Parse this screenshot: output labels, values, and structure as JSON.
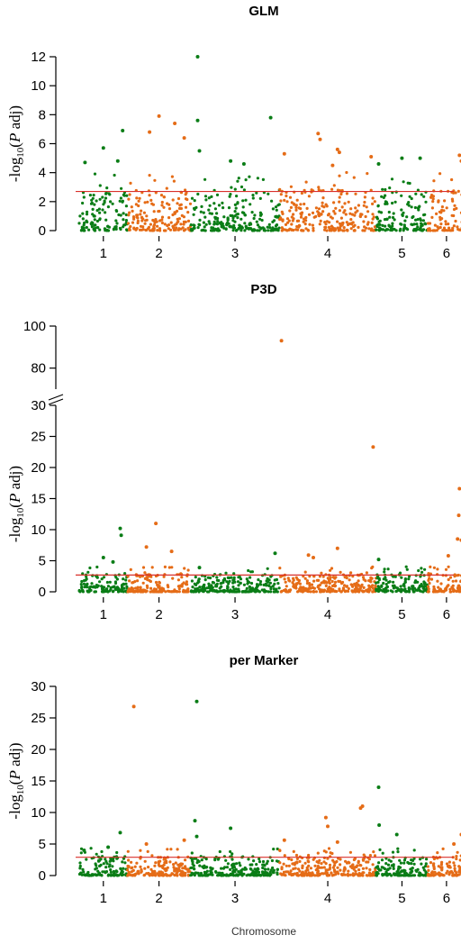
{
  "chart_data": [
    {
      "type": "scatter",
      "title": "GLM",
      "ylabel": {
        "prefix": "-log",
        "sub": "10",
        "open": "(",
        "italic": "P",
        "rest": " adj)"
      },
      "ylim": [
        0,
        12
      ],
      "yticks": [
        0,
        2,
        4,
        6,
        8,
        10,
        12
      ],
      "threshold": 2.7,
      "chromosomes": [
        "1",
        "2",
        "3",
        "4",
        "5",
        "6"
      ],
      "colors": {
        "odd": "#0a7d16",
        "even": "#e56c17",
        "threshold": "#d9302b"
      },
      "peaks": [
        {
          "chr": 1,
          "pos": 0.12,
          "value": 4.7
        },
        {
          "chr": 1,
          "pos": 0.5,
          "value": 5.7
        },
        {
          "chr": 1,
          "pos": 0.9,
          "value": 6.9
        },
        {
          "chr": 1,
          "pos": 0.8,
          "value": 4.8
        },
        {
          "chr": 2,
          "pos": 0.35,
          "value": 6.8
        },
        {
          "chr": 2,
          "pos": 0.5,
          "value": 7.9
        },
        {
          "chr": 2,
          "pos": 0.75,
          "value": 7.4
        },
        {
          "chr": 2,
          "pos": 0.9,
          "value": 6.4
        },
        {
          "chr": 3,
          "pos": 0.08,
          "value": 12.0
        },
        {
          "chr": 3,
          "pos": 0.08,
          "value": 7.6
        },
        {
          "chr": 3,
          "pos": 0.1,
          "value": 5.5
        },
        {
          "chr": 3,
          "pos": 0.45,
          "value": 4.8
        },
        {
          "chr": 3,
          "pos": 0.6,
          "value": 4.6
        },
        {
          "chr": 3,
          "pos": 0.9,
          "value": 7.8
        },
        {
          "chr": 4,
          "pos": 0.05,
          "value": 5.3
        },
        {
          "chr": 4,
          "pos": 0.4,
          "value": 6.7
        },
        {
          "chr": 4,
          "pos": 0.42,
          "value": 6.3
        },
        {
          "chr": 4,
          "pos": 0.6,
          "value": 5.6
        },
        {
          "chr": 4,
          "pos": 0.62,
          "value": 5.4
        },
        {
          "chr": 4,
          "pos": 0.55,
          "value": 4.5
        },
        {
          "chr": 4,
          "pos": 0.95,
          "value": 5.1
        },
        {
          "chr": 5,
          "pos": 0.05,
          "value": 4.6
        },
        {
          "chr": 5,
          "pos": 0.5,
          "value": 5.0
        },
        {
          "chr": 5,
          "pos": 0.85,
          "value": 5.0
        },
        {
          "chr": 6,
          "pos": 0.85,
          "value": 5.2
        },
        {
          "chr": 6,
          "pos": 0.9,
          "value": 4.8
        }
      ]
    },
    {
      "type": "scatter",
      "title": "P3D",
      "ylabel": {
        "prefix": "-log",
        "sub": "10",
        "open": "(",
        "italic": "P",
        "rest": " adj)"
      },
      "ylim": [
        0,
        100
      ],
      "axis_break": [
        30,
        70
      ],
      "yticks": [
        0,
        5,
        10,
        15,
        20,
        25,
        30,
        80,
        100
      ],
      "threshold": 2.7,
      "chromosomes": [
        "1",
        "2",
        "3",
        "4",
        "5",
        "6"
      ],
      "colors": {
        "odd": "#0a7d16",
        "even": "#e56c17",
        "threshold": "#d9302b"
      },
      "peaks": [
        {
          "chr": 1,
          "pos": 0.5,
          "value": 5.5
        },
        {
          "chr": 1,
          "pos": 0.85,
          "value": 10.2
        },
        {
          "chr": 1,
          "pos": 0.87,
          "value": 9.1
        },
        {
          "chr": 1,
          "pos": 0.7,
          "value": 4.8
        },
        {
          "chr": 2,
          "pos": 0.3,
          "value": 7.2
        },
        {
          "chr": 2,
          "pos": 0.45,
          "value": 11.0
        },
        {
          "chr": 2,
          "pos": 0.7,
          "value": 6.5
        },
        {
          "chr": 3,
          "pos": 0.1,
          "value": 3.9
        },
        {
          "chr": 3,
          "pos": 0.95,
          "value": 6.2
        },
        {
          "chr": 4,
          "pos": 0.02,
          "value": 93.0
        },
        {
          "chr": 4,
          "pos": 0.3,
          "value": 5.9
        },
        {
          "chr": 4,
          "pos": 0.35,
          "value": 5.5
        },
        {
          "chr": 4,
          "pos": 0.6,
          "value": 7.0
        },
        {
          "chr": 4,
          "pos": 0.97,
          "value": 23.3
        },
        {
          "chr": 5,
          "pos": 0.05,
          "value": 5.2
        },
        {
          "chr": 6,
          "pos": 0.55,
          "value": 5.8
        },
        {
          "chr": 6,
          "pos": 0.85,
          "value": 16.6
        },
        {
          "chr": 6,
          "pos": 0.83,
          "value": 12.3
        },
        {
          "chr": 6,
          "pos": 0.8,
          "value": 8.5
        },
        {
          "chr": 6,
          "pos": 0.9,
          "value": 8.3
        }
      ]
    },
    {
      "type": "scatter",
      "title": "per Marker",
      "ylabel": {
        "prefix": "-log",
        "sub": "10",
        "open": "(",
        "italic": "P",
        "rest": " adj)"
      },
      "ylim": [
        0,
        30
      ],
      "yticks": [
        0,
        5,
        10,
        15,
        20,
        25,
        30
      ],
      "threshold": 2.9,
      "chromosomes": [
        "1",
        "2",
        "3",
        "4",
        "5",
        "6"
      ],
      "colors": {
        "odd": "#0a7d16",
        "even": "#e56c17",
        "threshold": "#d9302b"
      },
      "peaks": [
        {
          "chr": 1,
          "pos": 0.1,
          "value": 4.0
        },
        {
          "chr": 1,
          "pos": 0.85,
          "value": 6.8
        },
        {
          "chr": 1,
          "pos": 0.6,
          "value": 4.5
        },
        {
          "chr": 2,
          "pos": 0.1,
          "value": 26.8
        },
        {
          "chr": 2,
          "pos": 0.3,
          "value": 5.0
        },
        {
          "chr": 2,
          "pos": 0.9,
          "value": 5.6
        },
        {
          "chr": 3,
          "pos": 0.07,
          "value": 27.6
        },
        {
          "chr": 3,
          "pos": 0.05,
          "value": 8.7
        },
        {
          "chr": 3,
          "pos": 0.07,
          "value": 6.2
        },
        {
          "chr": 3,
          "pos": 0.45,
          "value": 7.5
        },
        {
          "chr": 4,
          "pos": 0.05,
          "value": 5.6
        },
        {
          "chr": 4,
          "pos": 0.48,
          "value": 9.2
        },
        {
          "chr": 4,
          "pos": 0.5,
          "value": 7.8
        },
        {
          "chr": 4,
          "pos": 0.6,
          "value": 5.3
        },
        {
          "chr": 4,
          "pos": 0.86,
          "value": 11.0
        },
        {
          "chr": 4,
          "pos": 0.84,
          "value": 10.7
        },
        {
          "chr": 5,
          "pos": 0.05,
          "value": 14.0
        },
        {
          "chr": 5,
          "pos": 0.06,
          "value": 8.0
        },
        {
          "chr": 5,
          "pos": 0.4,
          "value": 6.5
        },
        {
          "chr": 6,
          "pos": 0.9,
          "value": 6.5
        },
        {
          "chr": 6,
          "pos": 0.7,
          "value": 5.0
        }
      ]
    }
  ],
  "xlabel": "Chromosome"
}
